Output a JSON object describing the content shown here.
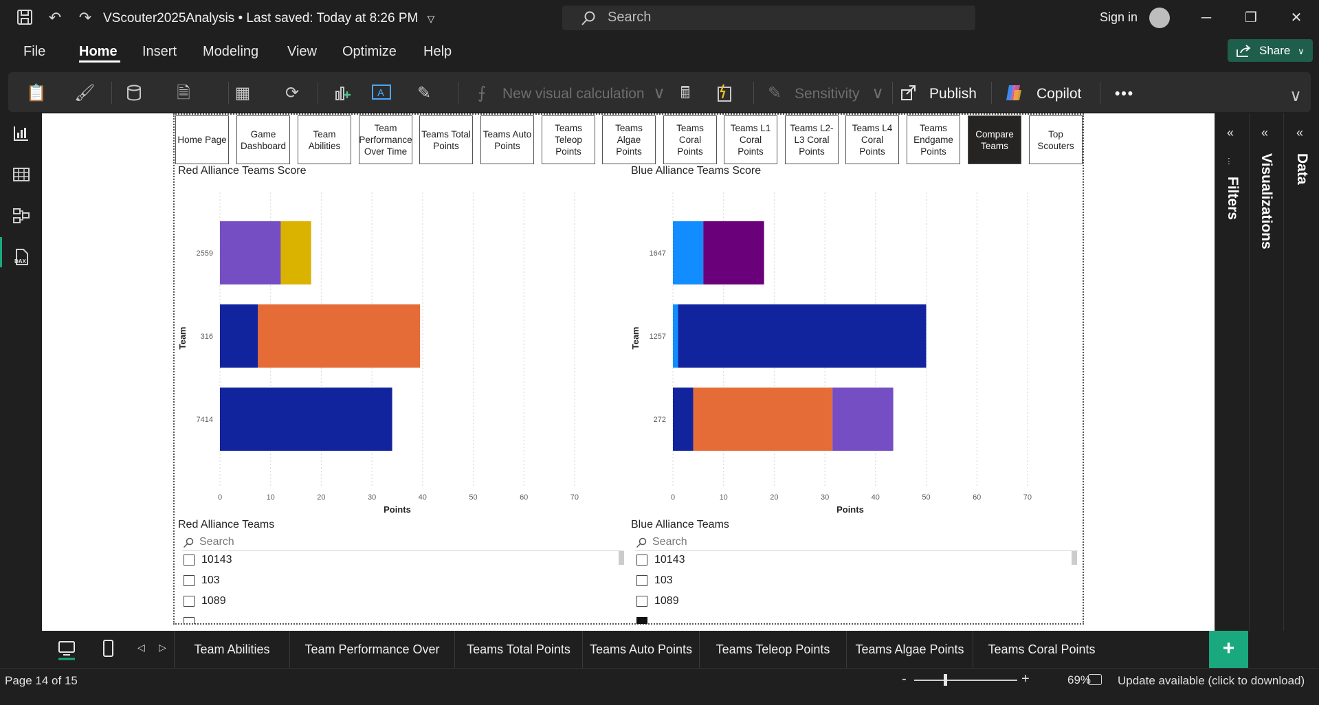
{
  "title_bar": {
    "doc_title": "VScouter2025Analysis • Last saved: Today at 8:26 PM",
    "search_placeholder": "Search",
    "sign_in": "Sign in"
  },
  "menu": {
    "items": [
      "File",
      "Home",
      "Insert",
      "Modeling",
      "View",
      "Optimize",
      "Help"
    ],
    "active": "Home",
    "share_label": "Share"
  },
  "ribbon": {
    "new_visual_calculation": "New visual calculation",
    "sensitivity": "Sensitivity",
    "publish": "Publish",
    "copilot": "Copilot",
    "more": "•••"
  },
  "nav_buttons": [
    {
      "label": "Home Page",
      "selected": false
    },
    {
      "label": "Game Dashboard",
      "selected": false
    },
    {
      "label": "Team Abilities",
      "selected": false
    },
    {
      "label": "Team Performance Over Time",
      "selected": false
    },
    {
      "label": "Teams Total Points",
      "selected": false
    },
    {
      "label": "Teams Auto Points",
      "selected": false
    },
    {
      "label": "Teams Teleop Points",
      "selected": false
    },
    {
      "label": "Teams Algae Points",
      "selected": false
    },
    {
      "label": "Teams Coral Points",
      "selected": false
    },
    {
      "label": "Teams L1 Coral Points",
      "selected": false
    },
    {
      "label": "Teams L2-L3 Coral Points",
      "selected": false
    },
    {
      "label": "Teams L4 Coral Points",
      "selected": false
    },
    {
      "label": "Teams Endgame Points",
      "selected": false
    },
    {
      "label": "Compare Teams",
      "selected": true
    },
    {
      "label": "Top Scouters",
      "selected": false
    }
  ],
  "chart_data": [
    {
      "type": "bar",
      "orientation": "horizontal",
      "stacked": true,
      "title": "Red Alliance Teams Score",
      "xlabel": "Points",
      "ylabel": "Team",
      "xlim": [
        0,
        70
      ],
      "xticks": [
        0,
        10,
        20,
        30,
        40,
        50,
        60,
        70
      ],
      "grid": true,
      "categories": [
        "2559",
        "316",
        "7414"
      ],
      "bars": [
        {
          "team": "2559",
          "segments": [
            {
              "value": 12,
              "color": "#744ec2"
            },
            {
              "value": 6,
              "color": "#d9b300"
            }
          ]
        },
        {
          "team": "316",
          "segments": [
            {
              "value": 7.5,
              "color": "#12239e"
            },
            {
              "value": 32,
              "color": "#e66c37"
            }
          ]
        },
        {
          "team": "7414",
          "segments": [
            {
              "value": 34,
              "color": "#12239e"
            }
          ]
        }
      ]
    },
    {
      "type": "bar",
      "orientation": "horizontal",
      "stacked": true,
      "title": "Blue Alliance Teams Score",
      "xlabel": "Points",
      "ylabel": "Team",
      "xlim": [
        0,
        70
      ],
      "xticks": [
        0,
        10,
        20,
        30,
        40,
        50,
        60,
        70
      ],
      "grid": true,
      "categories": [
        "1647",
        "1257",
        "272"
      ],
      "bars": [
        {
          "team": "1647",
          "segments": [
            {
              "value": 6,
              "color": "#118dff"
            },
            {
              "value": 12,
              "color": "#6b007b"
            }
          ]
        },
        {
          "team": "1257",
          "segments": [
            {
              "value": 1,
              "color": "#118dff"
            },
            {
              "value": 49,
              "color": "#12239e"
            }
          ]
        },
        {
          "team": "272",
          "segments": [
            {
              "value": 4,
              "color": "#12239e"
            },
            {
              "value": 27.5,
              "color": "#e66c37"
            },
            {
              "value": 12,
              "color": "#744ec2"
            }
          ]
        }
      ]
    }
  ],
  "slicers": {
    "red": {
      "title": "Red Alliance Teams",
      "search_placeholder": "Search",
      "items": [
        {
          "label": "10143",
          "checked": false
        },
        {
          "label": "103",
          "checked": false
        },
        {
          "label": "1089",
          "checked": false
        }
      ]
    },
    "blue": {
      "title": "Blue Alliance Teams",
      "search_placeholder": "Search",
      "items": [
        {
          "label": "10143",
          "checked": false
        },
        {
          "label": "103",
          "checked": false
        },
        {
          "label": "1089",
          "checked": false
        }
      ]
    }
  },
  "panes": {
    "filters": "Filters",
    "visualizations": "Visualizations",
    "data": "Data"
  },
  "page_tabs": [
    "Team Abilities",
    "Team Performance Over Time",
    "Teams Total Points",
    "Teams Auto Points",
    "Teams Teleop Points",
    "Teams Algae Points",
    "Teams Coral Points"
  ],
  "status": {
    "page": "Page 14 of 15",
    "zoom": "69%",
    "update": "Update available (click to download)"
  }
}
